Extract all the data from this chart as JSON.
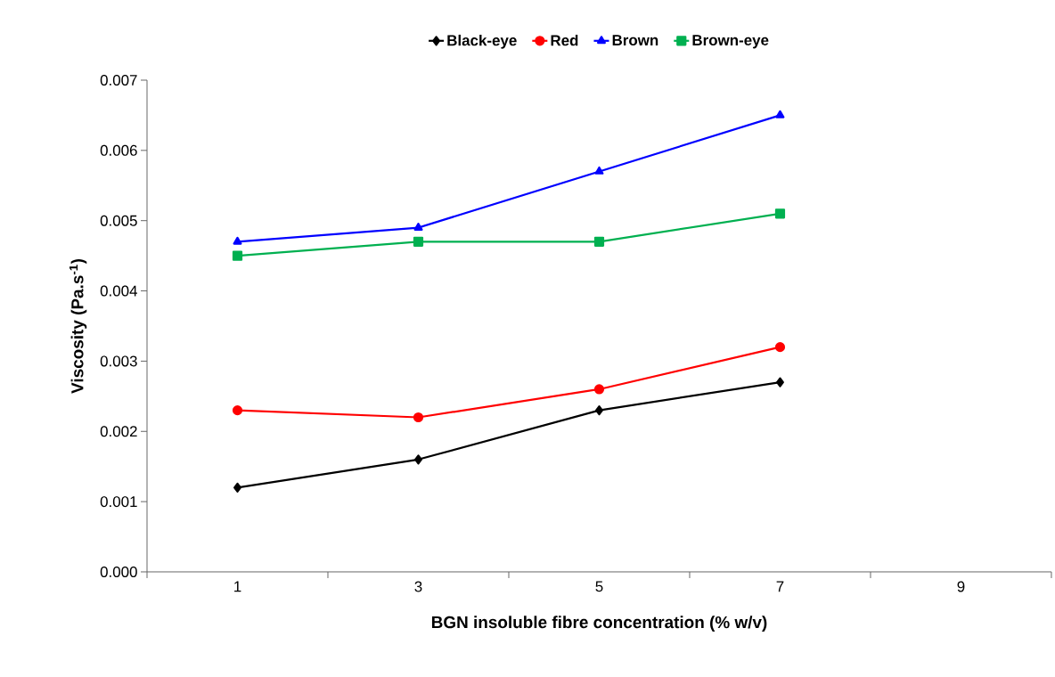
{
  "chart_data": {
    "type": "line",
    "xlabel": "BGN insoluble fibre concentration (% w/v)",
    "ylabel": "Viscosity (Pa.s$^{-1}$)",
    "categories": [
      "1",
      "3",
      "5",
      "7",
      "9"
    ],
    "series": [
      {
        "name": "Black-eye",
        "color": "#000000",
        "marker": "diamond",
        "values": [
          0.0012,
          0.0016,
          0.0023,
          0.0027,
          null
        ]
      },
      {
        "name": "Red",
        "color": "#ff0000",
        "marker": "circle",
        "values": [
          0.0023,
          0.0022,
          0.0026,
          0.0032,
          null
        ]
      },
      {
        "name": "Brown",
        "color": "#0000ff",
        "marker": "triangle",
        "values": [
          0.0047,
          0.0049,
          0.0057,
          0.0065,
          null
        ]
      },
      {
        "name": "Brown-eye",
        "color": "#00b050",
        "marker": "square",
        "values": [
          0.0045,
          0.0047,
          0.0047,
          0.0051,
          null
        ]
      }
    ],
    "ylim": [
      0,
      0.007
    ],
    "yticks": [
      {
        "value": 0,
        "label": "0.000"
      },
      {
        "value": 0.001,
        "label": "0.001"
      },
      {
        "value": 0.002,
        "label": "0.002"
      },
      {
        "value": 0.003,
        "label": "0.003"
      },
      {
        "value": 0.004,
        "label": "0.004"
      },
      {
        "value": 0.005,
        "label": "0.005"
      },
      {
        "value": 0.006,
        "label": "0.006"
      },
      {
        "value": 0.007,
        "label": "0.007"
      }
    ],
    "grid": false,
    "legend": "top",
    "line_style": "solid"
  }
}
